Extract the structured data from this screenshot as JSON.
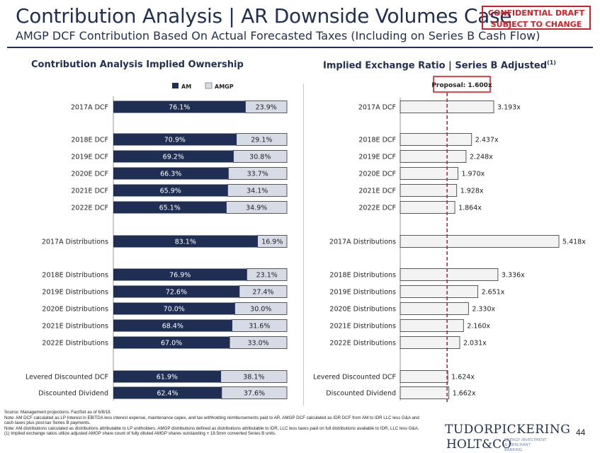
{
  "title": "Contribution Analysis | AR Downside Volumes Case",
  "subtitle": "AMGP DCF Contribution Based On Actual Forecasted Taxes (Including on Series B Cash Flow)",
  "confidential_line1": "CONFIDENTIAL DRAFT",
  "confidential_line2": "SUBJECT TO CHANGE",
  "left_section_title": "Contribution Analysis Implied Ownership",
  "right_section_title": "Implied Exchange Ratio | Series B Adjusted",
  "right_section_sup": "(1)",
  "colors": {
    "am": "#1f2f54",
    "amgp": "#d6dbe6",
    "navy": "#1f2f54",
    "red": "#d42026"
  },
  "chart_data": [
    {
      "type": "bar",
      "stacked": true,
      "orientation": "horizontal",
      "categories": [
        "2017A DCF",
        "2018E DCF",
        "2019E DCF",
        "2020E DCF",
        "2021E DCF",
        "2022E DCF",
        "2017A Distributions",
        "2018E Distributions",
        "2019E Distributions",
        "2020E Distributions",
        "2021E Distributions",
        "2022E Distributions",
        "Levered Discounted DCF",
        "Discounted Dividend"
      ],
      "series": [
        {
          "name": "AM",
          "values": [
            76.1,
            70.9,
            69.2,
            66.3,
            65.9,
            65.1,
            83.1,
            76.9,
            72.6,
            70.0,
            68.4,
            67.0,
            61.9,
            62.4
          ],
          "labels": [
            "76.1%",
            "70.9%",
            "69.2%",
            "66.3%",
            "65.9%",
            "65.1%",
            "83.1%",
            "76.9%",
            "72.6%",
            "70.0%",
            "68.4%",
            "67.0%",
            "61.9%",
            "62.4%"
          ]
        },
        {
          "name": "AMGP",
          "values": [
            23.9,
            29.1,
            30.8,
            33.7,
            34.1,
            34.9,
            16.9,
            23.1,
            27.4,
            30.0,
            31.6,
            33.0,
            38.1,
            37.6
          ],
          "labels": [
            "23.9%",
            "29.1%",
            "30.8%",
            "33.7%",
            "34.1%",
            "34.9%",
            "16.9%",
            "23.1%",
            "27.4%",
            "30.0%",
            "31.6%",
            "33.0%",
            "38.1%",
            "37.6%"
          ]
        }
      ],
      "xlim": [
        0,
        100
      ],
      "legend_position": "top"
    },
    {
      "type": "bar",
      "orientation": "horizontal",
      "categories": [
        "2017A DCF",
        "2018E DCF",
        "2019E DCF",
        "2020E DCF",
        "2021E DCF",
        "2022E DCF",
        "2017A Distributions",
        "2018E Distributions",
        "2019E Distributions",
        "2020E Distributions",
        "2021E Distributions",
        "2022E Distributions",
        "Levered Discounted DCF",
        "Discounted Dividend"
      ],
      "values": [
        3.193,
        2.437,
        2.248,
        1.97,
        1.928,
        1.864,
        5.418,
        3.336,
        2.651,
        2.33,
        2.16,
        2.031,
        1.624,
        1.662
      ],
      "labels": [
        "3.193x",
        "2.437x",
        "2.248x",
        "1.970x",
        "1.928x",
        "1.864x",
        "5.418x",
        "3.336x",
        "2.651x",
        "2.330x",
        "2.160x",
        "2.031x",
        "1.624x",
        "1.662x"
      ],
      "reference_value": 1.6,
      "reference_label": "Proposal: 1.600x",
      "xlim": [
        0,
        5.5
      ]
    }
  ],
  "footnotes": [
    "Source: Management projections. FactSet as of 6/8/18.",
    "Note: AM DCF calculated as LP Interest in EBITDA less interest expense, maintenance capex, and tax withholding reimbursements paid to AR. AMGP DCF calculated as IDR DCF from AM to IDR LLC less G&A and cash taxes plus post-tax Series B payments.",
    "Note: AM distributions calculated as distributions attributable to LP unitholders. AMGP distributions defined as distributions attributable to IDR, LLC less taxes paid on full distributions available to IDR, LLC less G&A.",
    "(1)     Implied exchange ratios utilize adjusted AMGP share count of fully diluted AMGP shares outstanding + 18.5mm converted Series B units."
  ],
  "logo": {
    "line1": "TUDORPICKERING",
    "line2": "HOLT&CO",
    "tagline": "ENERGY INVESTMENT & MERCHANT BANKING"
  },
  "page_number": "44"
}
